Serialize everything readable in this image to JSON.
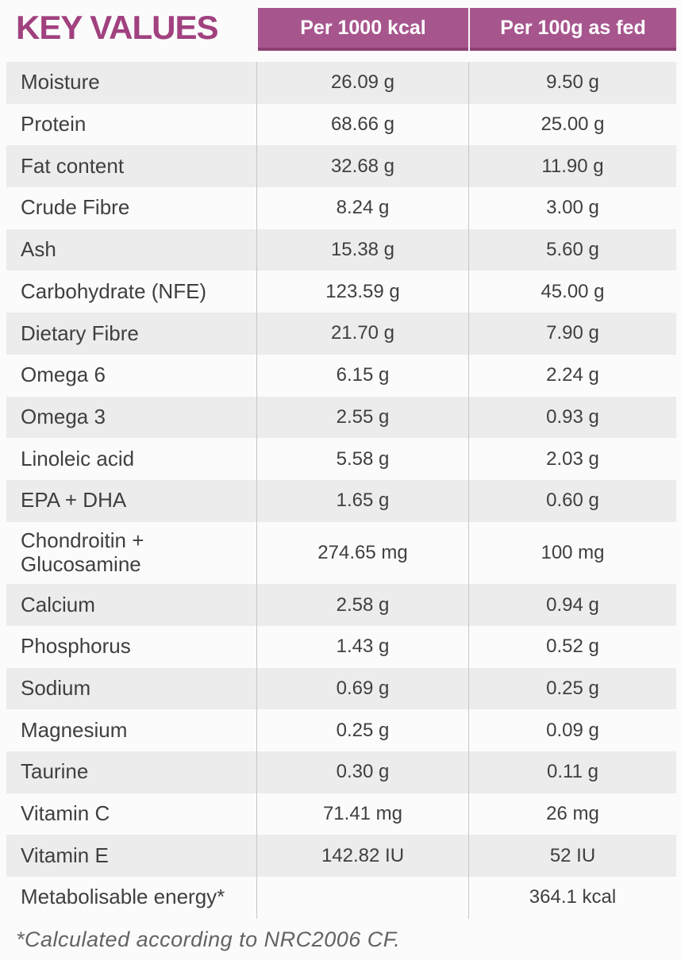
{
  "title": "KEY VALUES",
  "columns": {
    "per_1000_kcal": "Per 1000 kcal",
    "per_100g_as_fed": "Per 100g as fed"
  },
  "colors": {
    "accent_header_bg": "#a7568d",
    "accent_header_border": "#8c4173",
    "title_text": "#a1417f",
    "header_text": "#ffffff",
    "row_stripe": "#ececec",
    "divider_line": "#c6c6c6",
    "body_text": "#3f3f3f",
    "footnote_text": "#636363"
  },
  "rows": [
    {
      "label": "Moisture",
      "per_1000_kcal": "26.09 g",
      "per_100g_as_fed": "9.50 g"
    },
    {
      "label": "Protein",
      "per_1000_kcal": "68.66 g",
      "per_100g_as_fed": "25.00 g"
    },
    {
      "label": "Fat content",
      "per_1000_kcal": "32.68 g",
      "per_100g_as_fed": "11.90 g"
    },
    {
      "label": "Crude Fibre",
      "per_1000_kcal": "8.24 g",
      "per_100g_as_fed": "3.00 g"
    },
    {
      "label": "Ash",
      "per_1000_kcal": "15.38 g",
      "per_100g_as_fed": "5.60 g"
    },
    {
      "label": "Carbohydrate (NFE)",
      "per_1000_kcal": "123.59 g",
      "per_100g_as_fed": "45.00 g"
    },
    {
      "label": "Dietary Fibre",
      "per_1000_kcal": "21.70 g",
      "per_100g_as_fed": "7.90 g"
    },
    {
      "label": "Omega 6",
      "per_1000_kcal": "6.15 g",
      "per_100g_as_fed": "2.24 g"
    },
    {
      "label": "Omega 3",
      "per_1000_kcal": "2.55 g",
      "per_100g_as_fed": "0.93 g"
    },
    {
      "label": "Linoleic acid",
      "per_1000_kcal": "5.58 g",
      "per_100g_as_fed": "2.03 g"
    },
    {
      "label": "EPA + DHA",
      "per_1000_kcal": "1.65 g",
      "per_100g_as_fed": "0.60 g"
    },
    {
      "label": "Chondroitin +\nGlucosamine",
      "per_1000_kcal": "274.65 mg",
      "per_100g_as_fed": "100 mg"
    },
    {
      "label": "Calcium",
      "per_1000_kcal": "2.58 g",
      "per_100g_as_fed": "0.94 g"
    },
    {
      "label": "Phosphorus",
      "per_1000_kcal": "1.43 g",
      "per_100g_as_fed": "0.52 g"
    },
    {
      "label": "Sodium",
      "per_1000_kcal": "0.69 g",
      "per_100g_as_fed": "0.25 g"
    },
    {
      "label": "Magnesium",
      "per_1000_kcal": "0.25 g",
      "per_100g_as_fed": "0.09 g"
    },
    {
      "label": "Taurine",
      "per_1000_kcal": "0.30 g",
      "per_100g_as_fed": "0.11 g"
    },
    {
      "label": "Vitamin C",
      "per_1000_kcal": "71.41 mg",
      "per_100g_as_fed": "26 mg"
    },
    {
      "label": "Vitamin E",
      "per_1000_kcal": "142.82 IU",
      "per_100g_as_fed": "52 IU"
    },
    {
      "label": "Metabolisable energy*",
      "per_1000_kcal": "",
      "per_100g_as_fed": "364.1 kcal"
    }
  ],
  "footnote": "*Calculated according to NRC2006 CF."
}
